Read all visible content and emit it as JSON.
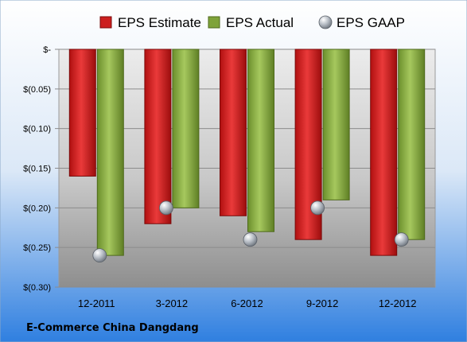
{
  "chart_data": {
    "type": "bar",
    "title": "E-Commerce China Dangdang",
    "categories": [
      "12-2011",
      "3-2012",
      "6-2012",
      "9-2012",
      "12-2012"
    ],
    "series": [
      {
        "name": "EPS Estimate",
        "kind": "bar",
        "color": "#cc1f1f",
        "values": [
          -0.16,
          -0.22,
          -0.21,
          -0.24,
          -0.26
        ]
      },
      {
        "name": "EPS Actual",
        "kind": "bar",
        "color": "#7fa33a",
        "values": [
          -0.26,
          -0.2,
          -0.23,
          -0.19,
          -0.24
        ]
      },
      {
        "name": "EPS GAAP",
        "kind": "marker",
        "color": "#9aa3ad",
        "values": [
          -0.26,
          -0.2,
          -0.24,
          -0.2,
          -0.24
        ]
      }
    ],
    "y_ticks": [
      {
        "value": 0,
        "label": "$-"
      },
      {
        "value": -0.05,
        "label": "$(0.05)"
      },
      {
        "value": -0.1,
        "label": "$(0.10)"
      },
      {
        "value": -0.15,
        "label": "$(0.15)"
      },
      {
        "value": -0.2,
        "label": "$(0.20)"
      },
      {
        "value": -0.25,
        "label": "$(0.25)"
      },
      {
        "value": -0.3,
        "label": "$(0.30)"
      }
    ],
    "ylim": [
      -0.3,
      0
    ],
    "grid": true,
    "legend_position": "top",
    "background": "blue gradient"
  }
}
